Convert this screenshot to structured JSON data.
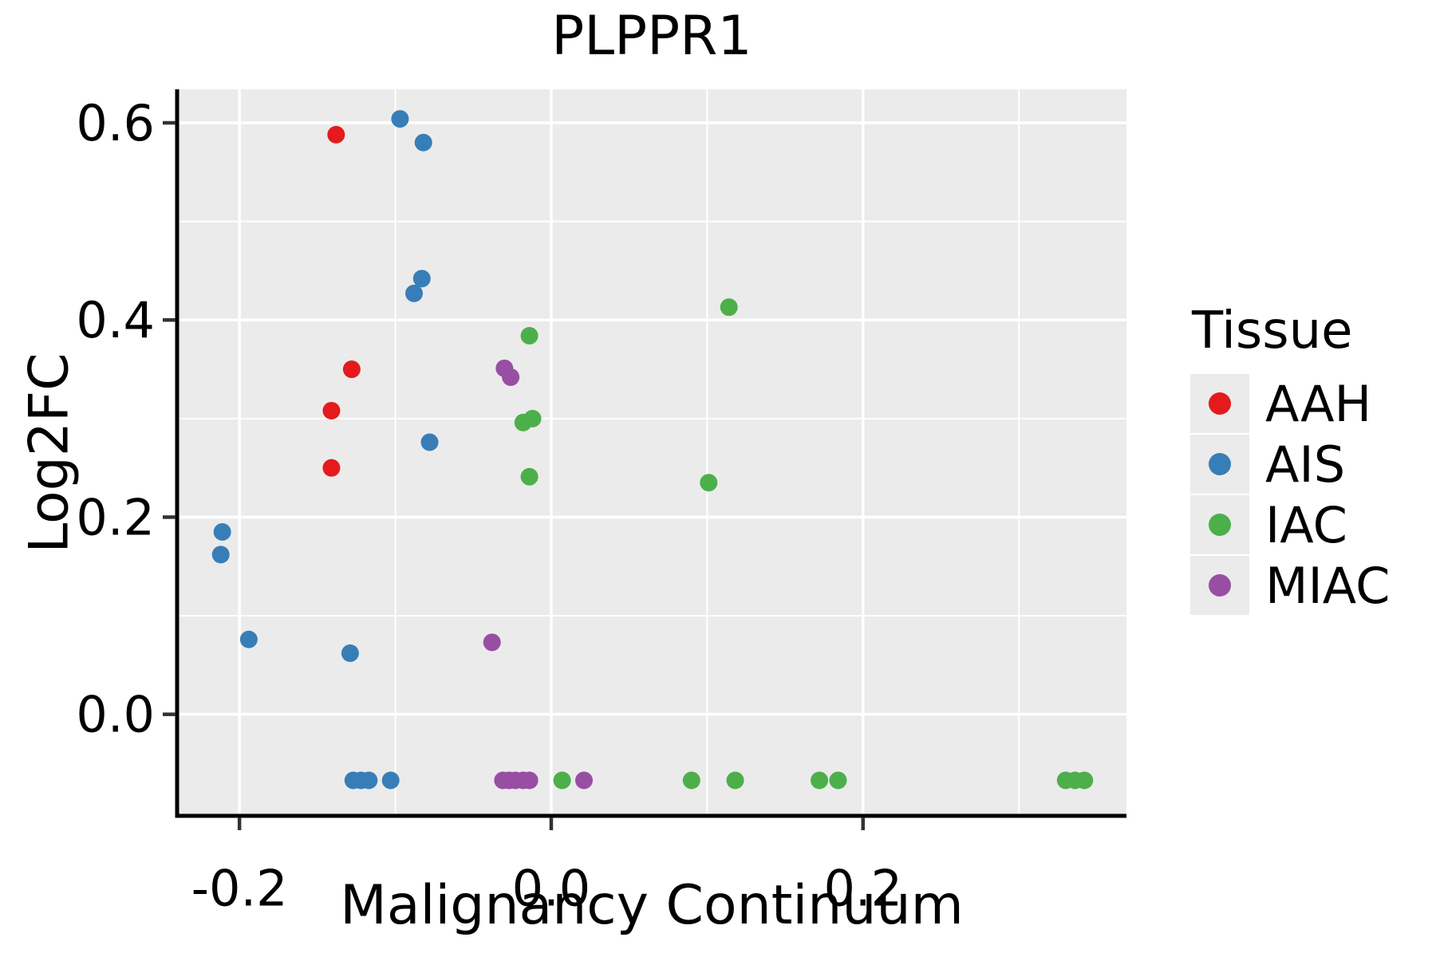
{
  "chart_data": {
    "type": "scatter",
    "title": "PLPPR1",
    "xlabel": "Malignancy Continuum",
    "ylabel": "Log2FC",
    "xlim": [
      -0.24,
      0.369
    ],
    "ylim": [
      -0.103,
      0.634
    ],
    "x_ticks": [
      -0.2,
      0.0,
      0.2
    ],
    "x_tick_labels": [
      "-0.2",
      "0.0",
      "0.2"
    ],
    "y_ticks": [
      0.0,
      0.2,
      0.4,
      0.6
    ],
    "y_tick_labels": [
      "0.0",
      "0.2",
      "0.4",
      "0.6"
    ],
    "x_minor_ticks": [
      -0.1,
      0.1,
      0.3
    ],
    "y_minor_ticks": [
      0.1,
      0.3,
      0.5
    ],
    "grid": true,
    "panel_bg": "#EBEBEB",
    "grid_color": "#FFFFFF",
    "point_radius_px": 11,
    "legend": {
      "title": "Tissue",
      "position": "right",
      "entries": [
        {
          "label": "AAH",
          "color": "#E41A1C"
        },
        {
          "label": "AIS",
          "color": "#377EB8"
        },
        {
          "label": "IAC",
          "color": "#4DAF4A"
        },
        {
          "label": "MIAC",
          "color": "#984EA3"
        }
      ]
    },
    "series": [
      {
        "name": "AAH",
        "color": "#E41A1C",
        "points": [
          [
            -0.138,
            0.588
          ],
          [
            -0.128,
            0.35
          ],
          [
            -0.141,
            0.308
          ],
          [
            -0.141,
            0.25
          ]
        ]
      },
      {
        "name": "AIS",
        "color": "#377EB8",
        "points": [
          [
            -0.097,
            0.604
          ],
          [
            -0.082,
            0.58
          ],
          [
            -0.083,
            0.442
          ],
          [
            -0.088,
            0.427
          ],
          [
            -0.078,
            0.276
          ],
          [
            -0.211,
            0.185
          ],
          [
            -0.212,
            0.162
          ],
          [
            -0.194,
            0.076
          ],
          [
            -0.129,
            0.062
          ],
          [
            -0.127,
            -0.067
          ],
          [
            -0.122,
            -0.067
          ],
          [
            -0.117,
            -0.067
          ],
          [
            -0.103,
            -0.067
          ]
        ]
      },
      {
        "name": "IAC",
        "color": "#4DAF4A",
        "points": [
          [
            0.114,
            0.413
          ],
          [
            -0.014,
            0.384
          ],
          [
            -0.018,
            0.296
          ],
          [
            -0.012,
            0.3
          ],
          [
            -0.014,
            0.241
          ],
          [
            0.101,
            0.235
          ],
          [
            0.007,
            -0.067
          ],
          [
            0.09,
            -0.067
          ],
          [
            0.118,
            -0.067
          ],
          [
            0.172,
            -0.067
          ],
          [
            0.184,
            -0.067
          ],
          [
            0.33,
            -0.067
          ],
          [
            0.336,
            -0.067
          ],
          [
            0.342,
            -0.067
          ]
        ]
      },
      {
        "name": "MIAC",
        "color": "#984EA3",
        "points": [
          [
            -0.03,
            0.351
          ],
          [
            -0.026,
            0.342
          ],
          [
            -0.038,
            0.073
          ],
          [
            -0.031,
            -0.067
          ],
          [
            -0.027,
            -0.067
          ],
          [
            -0.023,
            -0.067
          ],
          [
            -0.018,
            -0.067
          ],
          [
            -0.014,
            -0.067
          ],
          [
            0.021,
            -0.067
          ]
        ]
      }
    ]
  }
}
